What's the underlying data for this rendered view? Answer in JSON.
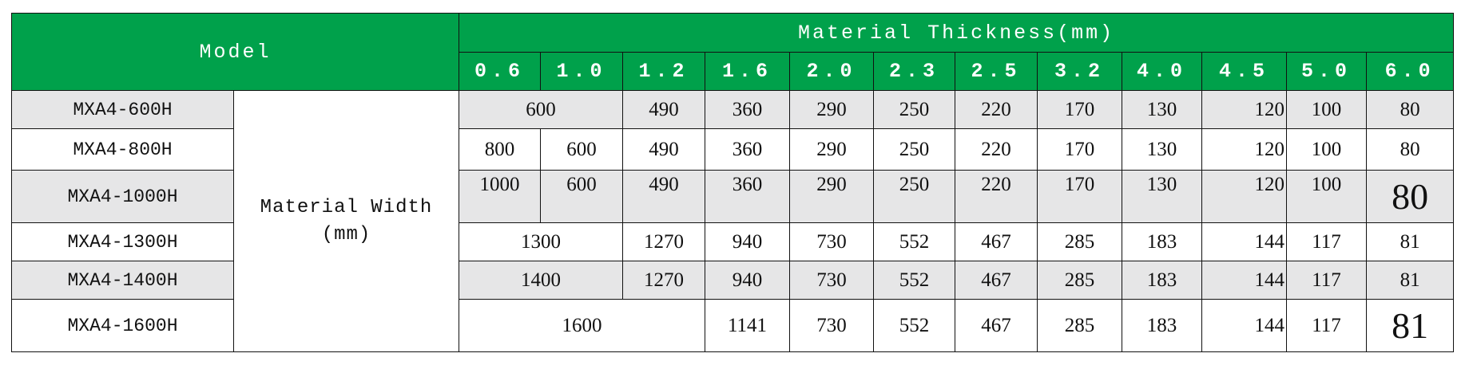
{
  "header": {
    "model": "Model",
    "thickness_title": "Material Thickness(mm)",
    "thicknesses": [
      "0.6",
      "1.0",
      "1.2",
      "1.6",
      "2.0",
      "2.3",
      "2.5",
      "3.2",
      "4.0",
      "4.5",
      "5.0",
      "6.0"
    ]
  },
  "width_label": "Material Width (mm)",
  "table": {
    "rows": [
      {
        "model": "MXA4-600H",
        "cells": [
          600,
          490,
          360,
          290,
          250,
          220,
          170,
          130,
          120,
          100,
          80
        ]
      },
      {
        "model": "MXA4-800H",
        "cells": [
          800,
          600,
          490,
          360,
          290,
          250,
          220,
          170,
          130,
          120,
          100,
          80
        ]
      },
      {
        "model": "MXA4-1000H",
        "cells": [
          1000,
          600,
          490,
          360,
          290,
          250,
          220,
          170,
          130,
          120,
          100,
          80
        ]
      },
      {
        "model": "MXA4-1300H",
        "cells": [
          1300,
          1270,
          940,
          730,
          552,
          467,
          285,
          183,
          144,
          117,
          81
        ]
      },
      {
        "model": "MXA4-1400H",
        "cells": [
          1400,
          1270,
          940,
          730,
          552,
          467,
          285,
          183,
          144,
          117,
          81
        ]
      },
      {
        "model": "MXA4-1600H",
        "cells": [
          1600,
          1141,
          730,
          552,
          467,
          285,
          183,
          144,
          117,
          81
        ]
      }
    ]
  }
}
